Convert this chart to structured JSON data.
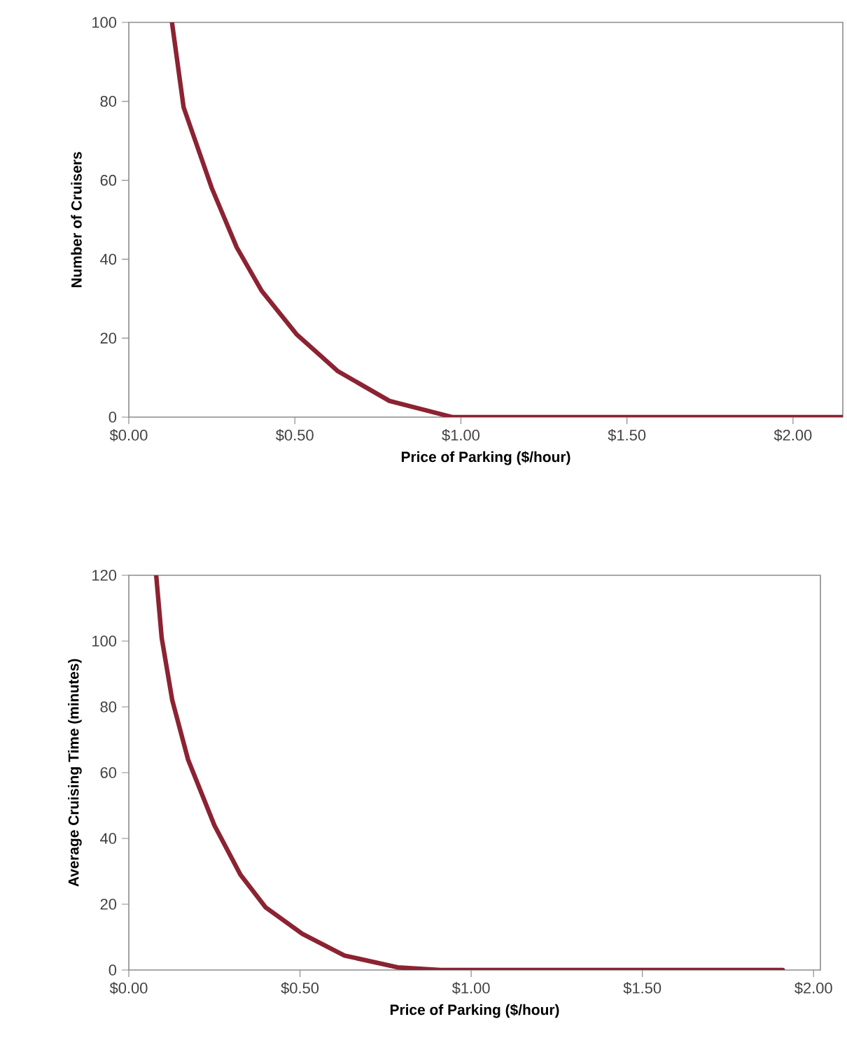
{
  "chart_data": [
    {
      "type": "line",
      "xlabel": "Price of Parking ($/hour)",
      "ylabel": "Number of Cruisers",
      "xlim": [
        0,
        2.15
      ],
      "ylim": [
        0,
        100
      ],
      "xticks": [
        {
          "value": 0,
          "label": "$0.00"
        },
        {
          "value": 0.5,
          "label": "$0.50"
        },
        {
          "value": 1,
          "label": "$1.00"
        },
        {
          "value": 1.5,
          "label": "$1.50"
        },
        {
          "value": 2,
          "label": "$2.00"
        }
      ],
      "yticks": [
        0,
        20,
        40,
        60,
        80,
        100
      ],
      "x": [
        0.13,
        0.165,
        0.25,
        0.325,
        0.4,
        0.505,
        0.63,
        0.785,
        0.975,
        2.15
      ],
      "series": [
        {
          "color": "#8b2332",
          "values": [
            100,
            78.5,
            58,
            43,
            32,
            21,
            11.6,
            4.1,
            0,
            0
          ]
        }
      ]
    },
    {
      "type": "line",
      "xlabel": "Price of Parking ($/hour)",
      "ylabel": "Average Cruising Time (minutes)",
      "xlim": [
        0,
        2.02
      ],
      "ylim": [
        0,
        120
      ],
      "xticks": [
        {
          "value": 0,
          "label": "$0.00"
        },
        {
          "value": 0.5,
          "label": "$0.50"
        },
        {
          "value": 1,
          "label": "$1.00"
        },
        {
          "value": 1.5,
          "label": "$1.50"
        },
        {
          "value": 2,
          "label": "$2.00"
        }
      ],
      "yticks": [
        0,
        20,
        40,
        60,
        80,
        100,
        120
      ],
      "x": [
        0.08,
        0.096,
        0.127,
        0.173,
        0.25,
        0.326,
        0.4,
        0.507,
        0.63,
        0.785,
        0.91,
        1.91
      ],
      "series": [
        {
          "color": "#8b2332",
          "values": [
            120,
            101,
            82,
            64,
            44,
            29,
            19,
            11,
            4.4,
            0.8,
            0,
            0
          ]
        }
      ]
    }
  ]
}
